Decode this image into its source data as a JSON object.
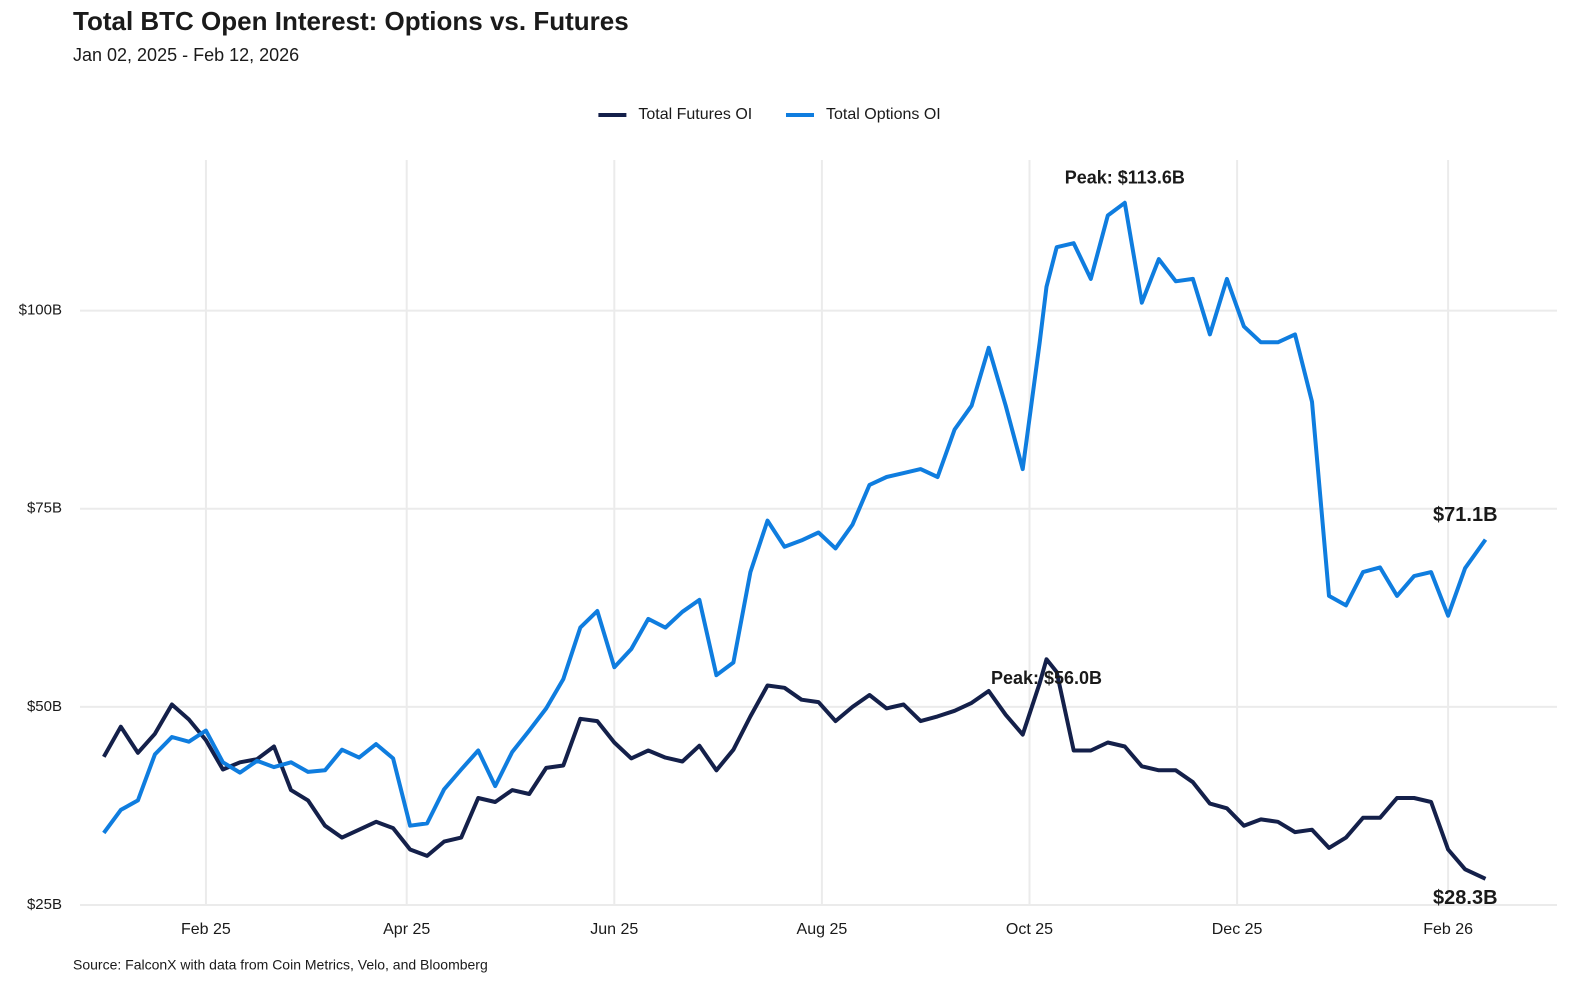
{
  "chart_data": {
    "type": "line",
    "title": "Total BTC Open Interest: Options vs. Futures",
    "subtitle": "Jan 02, 2025 - Feb 12, 2026",
    "source": "Source: FalconX with data from Coin Metrics, Velo, and Bloomberg",
    "legend": "top",
    "grid": true,
    "xlim": [
      "2024-12-26",
      "2026-03-05"
    ],
    "xticks": [
      {
        "value": "2025-02-01",
        "label": "Feb 25"
      },
      {
        "value": "2025-04-01",
        "label": "Apr 25"
      },
      {
        "value": "2025-06-01",
        "label": "Jun 25"
      },
      {
        "value": "2025-08-01",
        "label": "Aug 25"
      },
      {
        "value": "2025-10-01",
        "label": "Oct 25"
      },
      {
        "value": "2025-12-01",
        "label": "Dec 25"
      },
      {
        "value": "2026-02-01",
        "label": "Feb 26"
      }
    ],
    "ylim": [
      25,
      119
    ],
    "yticks": [
      {
        "value": 25,
        "label": "$25B"
      },
      {
        "value": 50,
        "label": "$50B"
      },
      {
        "value": 75,
        "label": "$75B"
      },
      {
        "value": 100,
        "label": "$100B"
      }
    ],
    "x": [
      "2025-01-02",
      "2025-01-07",
      "2025-01-12",
      "2025-01-17",
      "2025-01-22",
      "2025-01-27",
      "2025-02-01",
      "2025-02-06",
      "2025-02-11",
      "2025-02-16",
      "2025-02-21",
      "2025-02-26",
      "2025-03-03",
      "2025-03-08",
      "2025-03-13",
      "2025-03-18",
      "2025-03-23",
      "2025-03-28",
      "2025-04-02",
      "2025-04-07",
      "2025-04-12",
      "2025-04-17",
      "2025-04-22",
      "2025-04-27",
      "2025-05-02",
      "2025-05-07",
      "2025-05-12",
      "2025-05-17",
      "2025-05-22",
      "2025-05-27",
      "2025-06-01",
      "2025-06-06",
      "2025-06-11",
      "2025-06-16",
      "2025-06-21",
      "2025-06-26",
      "2025-07-01",
      "2025-07-06",
      "2025-07-11",
      "2025-07-16",
      "2025-07-21",
      "2025-07-26",
      "2025-07-31",
      "2025-08-05",
      "2025-08-10",
      "2025-08-15",
      "2025-08-20",
      "2025-08-25",
      "2025-08-30",
      "2025-09-04",
      "2025-09-09",
      "2025-09-14",
      "2025-09-19",
      "2025-09-24",
      "2025-09-29",
      "2025-10-04",
      "2025-10-06",
      "2025-10-09",
      "2025-10-14",
      "2025-10-19",
      "2025-10-24",
      "2025-10-29",
      "2025-11-03",
      "2025-11-08",
      "2025-11-13",
      "2025-11-18",
      "2025-11-23",
      "2025-11-28",
      "2025-12-03",
      "2025-12-08",
      "2025-12-13",
      "2025-12-18",
      "2025-12-23",
      "2025-12-28",
      "2026-01-02",
      "2026-01-07",
      "2026-01-12",
      "2026-01-17",
      "2026-01-22",
      "2026-01-27",
      "2026-02-01",
      "2026-02-06",
      "2026-02-12"
    ],
    "series": [
      {
        "name": "Total Futures OI",
        "color": "#14204a",
        "values": [
          43.7,
          47.5,
          44.2,
          46.6,
          50.3,
          48.4,
          45.8,
          42.1,
          43.0,
          43.4,
          45.0,
          39.5,
          38.2,
          35.0,
          33.5,
          34.5,
          35.5,
          34.7,
          32.0,
          31.2,
          33.0,
          33.5,
          38.5,
          38.0,
          39.5,
          39.0,
          42.3,
          42.6,
          48.5,
          48.2,
          45.5,
          43.5,
          44.5,
          43.6,
          43.1,
          45.1,
          42.0,
          44.6,
          48.8,
          52.7,
          52.4,
          50.9,
          50.6,
          48.2,
          50.0,
          51.5,
          49.8,
          50.3,
          48.2,
          48.8,
          49.5,
          50.5,
          52.0,
          49.0,
          46.5,
          53.0,
          56.0,
          54.4,
          44.5,
          44.5,
          45.5,
          45.0,
          42.5,
          42.0,
          42.0,
          40.5,
          37.8,
          37.2,
          35.0,
          35.8,
          35.5,
          34.2,
          34.5,
          32.2,
          33.5,
          36.0,
          36.0,
          38.5,
          38.5,
          38.0,
          32.0,
          29.5,
          28.3
        ]
      },
      {
        "name": "Total Options OI",
        "color": "#0f7ddf",
        "values": [
          34.1,
          37.0,
          38.2,
          44.0,
          46.2,
          45.6,
          47.0,
          43.0,
          41.7,
          43.2,
          42.4,
          43.0,
          41.8,
          42.0,
          44.6,
          43.6,
          45.3,
          43.5,
          35.0,
          35.3,
          39.6,
          42.1,
          44.5,
          40.0,
          44.3,
          47.0,
          49.8,
          53.5,
          60.0,
          62.1,
          55.0,
          57.3,
          61.1,
          60.0,
          62.0,
          63.5,
          54.0,
          55.6,
          67.0,
          73.5,
          70.2,
          71.0,
          72.0,
          70.0,
          73.0,
          78.0,
          79.0,
          79.5,
          80.0,
          79.0,
          85.0,
          88.0,
          95.3,
          88.0,
          80.0,
          96.0,
          103.0,
          108.0,
          108.5,
          104.0,
          112.0,
          113.6,
          101.0,
          106.5,
          103.7,
          104.0,
          97.0,
          104.0,
          98.0,
          96.0,
          96.0,
          97.0,
          88.5,
          64.0,
          62.8,
          67.0,
          67.6,
          64.0,
          66.5,
          67.0,
          61.5,
          67.5,
          71.1
        ]
      }
    ],
    "annotations": [
      {
        "text": "Peak: $113.6B",
        "x": "2025-10-29",
        "y": 113.6,
        "color": "#0f7ddf"
      },
      {
        "text": "Peak: $56.0B",
        "x": "2025-10-06",
        "y": 56.0,
        "color": "#14204a"
      },
      {
        "text": "$71.1B",
        "x": "2026-02-12",
        "y": 71.1,
        "color": "#0f7ddf"
      },
      {
        "text": "$28.3B",
        "x": "2026-02-12",
        "y": 28.3,
        "color": "#14204a"
      }
    ]
  }
}
